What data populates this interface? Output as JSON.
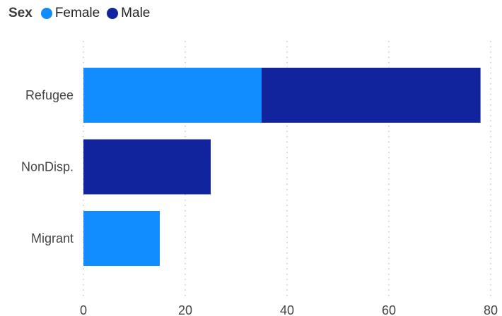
{
  "legend": {
    "title": "Sex",
    "entries": [
      {
        "label": "Female",
        "color": "#118DFF"
      },
      {
        "label": "Male",
        "color": "#12239E"
      }
    ]
  },
  "chart_data": {
    "type": "bar",
    "orientation": "horizontal",
    "stacked": true,
    "categories": [
      "Refugee",
      "NonDisp.",
      "Migrant"
    ],
    "series": [
      {
        "name": "Female",
        "color": "#118DFF",
        "values": [
          35,
          0,
          15
        ]
      },
      {
        "name": "Male",
        "color": "#12239E",
        "values": [
          43,
          25,
          0
        ]
      }
    ],
    "xlim": [
      0,
      80
    ],
    "xticks": [
      0,
      20,
      40,
      60,
      80
    ],
    "grid": true,
    "legend_position": "top-left"
  }
}
